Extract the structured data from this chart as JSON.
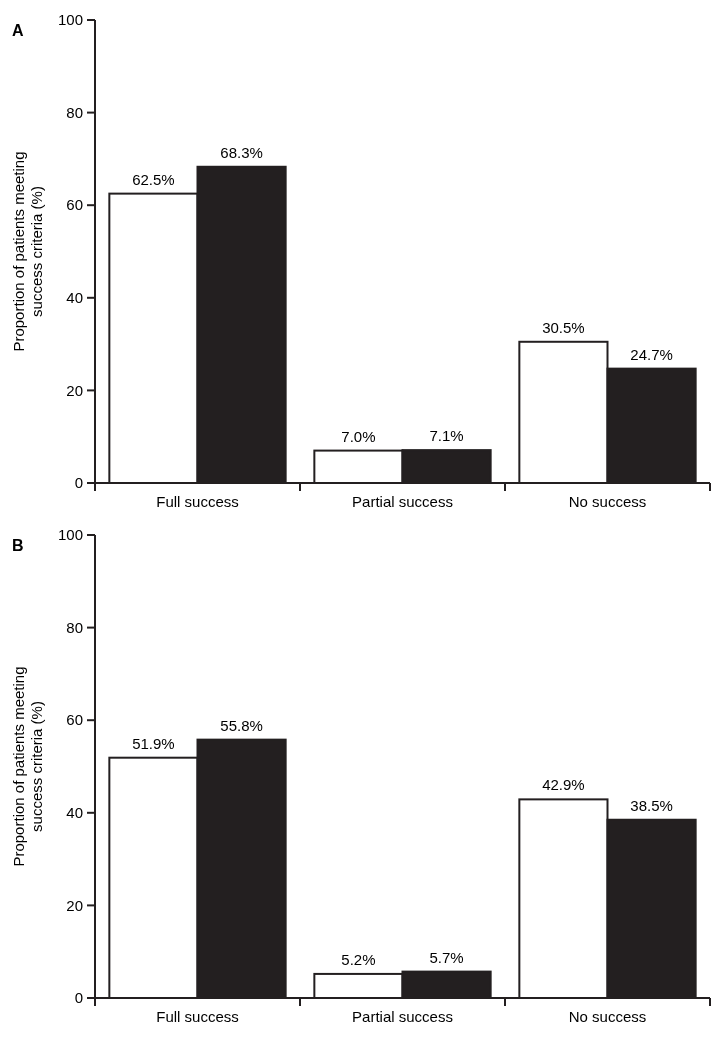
{
  "chart_data": [
    {
      "type": "bar",
      "title": "A",
      "ylabel": "Proportion of patients meeting success criteria (%)",
      "categories": [
        "Full success",
        "Partial success",
        "No success"
      ],
      "series": [
        {
          "color": "#ffffff",
          "values": [
            62.5,
            7.0,
            30.5
          ],
          "value_labels": [
            "62.5%",
            "7.0%",
            "30.5%"
          ]
        },
        {
          "color": "#231f20",
          "values": [
            68.3,
            7.1,
            24.7
          ],
          "value_labels": [
            "68.3%",
            "7.1%",
            "24.7%"
          ]
        }
      ],
      "ylim": [
        0,
        100
      ],
      "yticks": [
        0,
        20,
        40,
        60,
        80,
        100
      ]
    },
    {
      "type": "bar",
      "title": "B",
      "ylabel": "Proportion of patients meeting success criteria (%)",
      "categories": [
        "Full success",
        "Partial success",
        "No success"
      ],
      "series": [
        {
          "color": "#ffffff",
          "values": [
            51.9,
            5.2,
            42.9
          ],
          "value_labels": [
            "51.9%",
            "5.2%",
            "42.9%"
          ]
        },
        {
          "color": "#231f20",
          "values": [
            55.8,
            5.7,
            38.5
          ],
          "value_labels": [
            "55.8%",
            "5.7%",
            "38.5%"
          ]
        }
      ],
      "ylim": [
        0,
        100
      ],
      "yticks": [
        0,
        20,
        40,
        60,
        80,
        100
      ]
    }
  ]
}
